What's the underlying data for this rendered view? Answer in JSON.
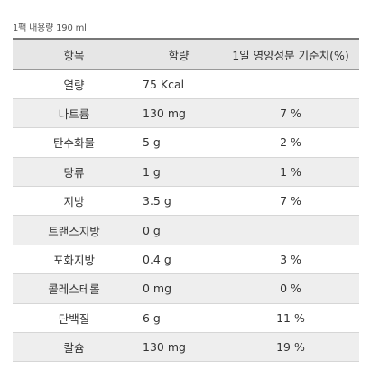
{
  "caption": "1팩 내용량 190 ml",
  "headers": {
    "item": "항목",
    "amount": "함량",
    "daily": "1일 영양성분 기준치(%)"
  },
  "rows": [
    {
      "item": "열량",
      "amount": "75 Kcal",
      "daily": ""
    },
    {
      "item": "나트륨",
      "amount": "130 mg",
      "daily": "7 %"
    },
    {
      "item": "탄수화물",
      "amount": "5 g",
      "daily": "2 %"
    },
    {
      "item": "당류",
      "amount": "1 g",
      "daily": "1 %"
    },
    {
      "item": "지방",
      "amount": "3.5 g",
      "daily": "7 %"
    },
    {
      "item": "트랜스지방",
      "amount": "0 g",
      "daily": ""
    },
    {
      "item": "포화지방",
      "amount": "0.4 g",
      "daily": "3 %"
    },
    {
      "item": "콜레스테롤",
      "amount": "0 mg",
      "daily": "0 %"
    },
    {
      "item": "단백질",
      "amount": "6 g",
      "daily": "11 %"
    },
    {
      "item": "칼슘",
      "amount": "130 mg",
      "daily": "19 %"
    }
  ]
}
